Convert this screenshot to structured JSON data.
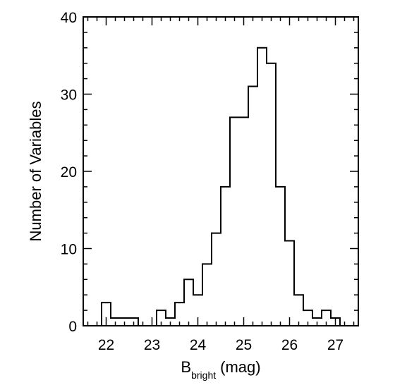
{
  "chart_data": {
    "type": "histogram",
    "title": "",
    "xlabel": {
      "main": "B",
      "subscript": "bright",
      "unit": "(mag)"
    },
    "ylabel": "Number of Variables",
    "xlim": [
      21.5,
      27.5
    ],
    "ylim": [
      0,
      40
    ],
    "xticks": [
      22,
      23,
      24,
      25,
      26,
      27
    ],
    "yticks": [
      0,
      10,
      20,
      30,
      40
    ],
    "bin_width": 0.2,
    "bin_edges": [
      21.9,
      22.1,
      22.3,
      22.5,
      22.7,
      22.9,
      23.1,
      23.3,
      23.5,
      23.7,
      23.9,
      24.1,
      24.3,
      24.5,
      24.7,
      24.9,
      25.1,
      25.3,
      25.5,
      25.7,
      25.9,
      26.1,
      26.3,
      26.5,
      26.7,
      26.9,
      27.1
    ],
    "counts": [
      3,
      1,
      1,
      1,
      0,
      0,
      2,
      1,
      3,
      6,
      4,
      8,
      12,
      18,
      27,
      27,
      31,
      36,
      34,
      18,
      11,
      4,
      2,
      1,
      2,
      1
    ],
    "grid": false,
    "legend": "none",
    "line_color": "#000000"
  }
}
